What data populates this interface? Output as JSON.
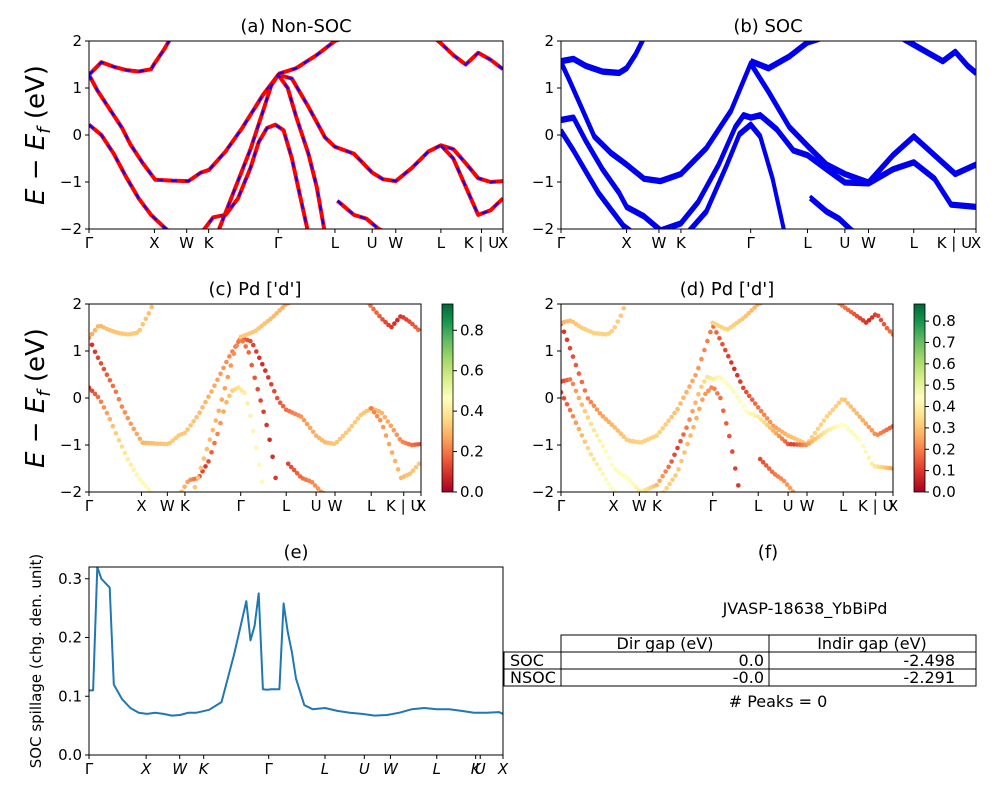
{
  "chart_data": [
    {
      "id": "a",
      "type": "line",
      "title": "(a) Non-SOC",
      "ylabel": "E − E_f (eV)",
      "ylim": [
        -2,
        2
      ],
      "yticks": [
        "2",
        "1",
        "0",
        "−1",
        "−2"
      ],
      "kpath_labels": [
        "Γ",
        "X",
        "W",
        "K",
        "Γ",
        "L",
        "U",
        "W",
        "L",
        "K | U",
        "X"
      ],
      "kpath_positions": [
        0,
        0.158,
        0.236,
        0.289,
        0.457,
        0.594,
        0.684,
        0.741,
        0.85,
        0.948,
        1.0
      ],
      "style": "red solid with blue dashed overlay",
      "series": [
        {
          "x": [
            0,
            0.02,
            0.05,
            0.08,
            0.1,
            0.13,
            0.16,
            0.2,
            0.24,
            0.27,
            0.29,
            0.33,
            0.37,
            0.42,
            0.457,
            0.49,
            0.53,
            0.57,
            0.594,
            0.64,
            0.684,
            0.71,
            0.741,
            0.78,
            0.82,
            0.85,
            0.88,
            0.91,
            0.94,
            0.97,
            1.0
          ],
          "y": [
            1.28,
            0.95,
            0.55,
            0.15,
            -0.2,
            -0.6,
            -0.95,
            -0.97,
            -0.98,
            -0.8,
            -0.74,
            -0.35,
            0.15,
            0.85,
            1.28,
            1.2,
            0.6,
            -0.05,
            -0.25,
            -0.4,
            -0.8,
            -0.94,
            -0.98,
            -0.7,
            -0.35,
            -0.22,
            -0.3,
            -0.6,
            -0.92,
            -1.0,
            -0.98
          ]
        },
        {
          "x": [
            0,
            0.03,
            0.06,
            0.09,
            0.12,
            0.15,
            0.18,
            0.2
          ],
          "y": [
            0.22,
            0.0,
            -0.4,
            -0.9,
            -1.35,
            -1.7,
            -1.95,
            -2.1
          ]
        },
        {
          "x": [
            0.27,
            0.3,
            0.33,
            0.36,
            0.39,
            0.41,
            0.43,
            0.45,
            0.47,
            0.49,
            0.51,
            0.53
          ],
          "y": [
            -2.1,
            -1.75,
            -1.7,
            -1.35,
            -0.7,
            -0.15,
            0.15,
            0.22,
            0.1,
            -0.5,
            -1.3,
            -2.1
          ]
        },
        {
          "x": [
            0.31,
            0.35,
            0.39,
            0.42,
            0.44,
            0.457,
            0.48,
            0.5,
            0.53,
            0.55,
            0.57
          ],
          "y": [
            -2.1,
            -1.2,
            -0.3,
            0.5,
            1.05,
            1.28,
            1.0,
            0.4,
            -0.4,
            -1.1,
            -2.1
          ]
        },
        {
          "x": [
            0,
            0.03,
            0.06,
            0.09,
            0.12,
            0.15,
            0.158,
            0.18,
            0.2
          ],
          "y": [
            1.28,
            1.55,
            1.45,
            1.38,
            1.35,
            1.4,
            1.52,
            1.8,
            2.1
          ]
        },
        {
          "x": [
            0.457,
            0.5,
            0.55,
            0.594,
            0.63,
            0.66
          ],
          "y": [
            1.3,
            1.42,
            1.7,
            2.0,
            2.1,
            2.1
          ]
        },
        {
          "x": [
            0.6,
            0.64,
            0.67,
            0.7,
            0.73
          ],
          "y": [
            -1.4,
            -1.7,
            -1.78,
            -2.0,
            -2.1
          ]
        },
        {
          "x": [
            0.83,
            0.85,
            0.88,
            0.91,
            0.94,
            0.97,
            1.0
          ],
          "y": [
            2.1,
            1.95,
            1.7,
            1.5,
            1.75,
            1.6,
            1.4
          ]
        },
        {
          "x": [
            0.85,
            0.88,
            0.91,
            0.94,
            0.97,
            1.0
          ],
          "y": [
            -0.22,
            -0.5,
            -1.1,
            -1.7,
            -1.6,
            -1.35
          ]
        }
      ]
    },
    {
      "id": "b",
      "type": "line",
      "title": "(b) SOC",
      "ylim": [
        -2,
        2
      ],
      "yticks": [
        "2",
        "1",
        "0",
        "−1",
        "−2"
      ],
      "kpath_labels": [
        "Γ",
        "X",
        "W",
        "K",
        "Γ",
        "L",
        "U",
        "W",
        "L",
        "K | U",
        "X"
      ],
      "kpath_positions": [
        0,
        0.158,
        0.236,
        0.289,
        0.457,
        0.594,
        0.684,
        0.741,
        0.85,
        0.948,
        1.0
      ],
      "color": "#0000ee",
      "series": [
        {
          "x": [
            0,
            0.02,
            0.05,
            0.08,
            0.12,
            0.158,
            0.2,
            0.24,
            0.289,
            0.35,
            0.41,
            0.457,
            0.5,
            0.55,
            0.594,
            0.64,
            0.684,
            0.741,
            0.8,
            0.85,
            0.9,
            0.95,
            1.0
          ],
          "y": [
            1.58,
            1.2,
            0.6,
            0.0,
            -0.35,
            -0.6,
            -0.9,
            -0.95,
            -0.8,
            -0.25,
            0.55,
            1.55,
            0.95,
            0.2,
            -0.2,
            -0.6,
            -0.8,
            -0.98,
            -0.4,
            0.0,
            -0.4,
            -0.8,
            -0.6
          ]
        },
        {
          "x": [
            0,
            0.03,
            0.06,
            0.1,
            0.14,
            0.158,
            0.2,
            0.24,
            0.289,
            0.33,
            0.38,
            0.42,
            0.44,
            0.457,
            0.48,
            0.52,
            0.56,
            0.594,
            0.64,
            0.684,
            0.741,
            0.8,
            0.85,
            0.9,
            0.94,
            1.0
          ],
          "y": [
            0.35,
            0.4,
            -0.1,
            -0.7,
            -1.2,
            -1.5,
            -1.7,
            -2.0,
            -1.85,
            -1.4,
            -0.6,
            0.2,
            0.45,
            0.4,
            0.45,
            0.15,
            -0.3,
            -0.4,
            -0.7,
            -0.98,
            -1.0,
            -0.7,
            -0.55,
            -0.9,
            -1.45,
            -1.5
          ]
        },
        {
          "x": [
            0,
            0.03,
            0.06,
            0.09,
            0.12,
            0.15,
            0.18
          ],
          "y": [
            0.12,
            -0.3,
            -0.75,
            -1.2,
            -1.55,
            -1.9,
            -2.1
          ]
        },
        {
          "x": [
            0.3,
            0.35,
            0.4,
            0.43,
            0.457,
            0.48,
            0.51,
            0.54
          ],
          "y": [
            -2.1,
            -1.6,
            -0.6,
            0.05,
            0.25,
            0.0,
            -0.9,
            -2.1
          ]
        },
        {
          "x": [
            0,
            0.03,
            0.06,
            0.1,
            0.14,
            0.158,
            0.18,
            0.2
          ],
          "y": [
            1.6,
            1.65,
            1.5,
            1.38,
            1.35,
            1.45,
            1.75,
            2.1
          ]
        },
        {
          "x": [
            0.457,
            0.5,
            0.55,
            0.594,
            0.63,
            0.66
          ],
          "y": [
            1.6,
            1.45,
            1.7,
            2.0,
            2.1,
            2.1
          ]
        },
        {
          "x": [
            0.6,
            0.64,
            0.67,
            0.7,
            0.72
          ],
          "y": [
            -1.3,
            -1.6,
            -1.75,
            -2.0,
            -2.1
          ]
        },
        {
          "x": [
            0.82,
            0.85,
            0.88,
            0.92,
            0.95,
            0.98,
            1.0
          ],
          "y": [
            2.1,
            1.95,
            1.8,
            1.6,
            1.8,
            1.5,
            1.35
          ]
        }
      ]
    },
    {
      "id": "c",
      "type": "scatter",
      "title": "(c)  Pd ['d']",
      "ylabel": "E − E_f (eV)",
      "ylim": [
        -2,
        2
      ],
      "yticks": [
        "2",
        "1",
        "0",
        "−1",
        "−2"
      ],
      "kpath_labels": [
        "Γ",
        "X",
        "W",
        "K",
        "Γ",
        "L",
        "U",
        "W",
        "L",
        "K | U",
        "X"
      ],
      "kpath_positions": [
        0,
        0.158,
        0.236,
        0.289,
        0.457,
        0.594,
        0.684,
        0.741,
        0.85,
        0.948,
        1.0
      ],
      "colorbar": {
        "ticks": [
          "0.0",
          "0.2",
          "0.4",
          "0.6",
          "0.8"
        ],
        "range": [
          0,
          0.93
        ],
        "cmap": "RdYlGn"
      }
    },
    {
      "id": "d",
      "type": "scatter",
      "title": "(d) Pd ['d']",
      "ylim": [
        -2,
        2
      ],
      "yticks": [
        "2",
        "1",
        "0",
        "−1",
        "−2"
      ],
      "kpath_labels": [
        "Γ",
        "X",
        "W",
        "K",
        "Γ",
        "L",
        "U",
        "W",
        "L",
        "K | U",
        "X"
      ],
      "kpath_positions": [
        0,
        0.158,
        0.236,
        0.289,
        0.457,
        0.594,
        0.684,
        0.741,
        0.85,
        0.948,
        1.0
      ],
      "colorbar": {
        "ticks": [
          "0.0",
          "0.1",
          "0.2",
          "0.3",
          "0.4",
          "0.5",
          "0.6",
          "0.7",
          "0.8"
        ],
        "range": [
          0,
          0.88
        ],
        "cmap": "RdYlGn"
      }
    },
    {
      "id": "e",
      "type": "line",
      "title": "(e)",
      "ylabel": "SOC spillage (chg. den. unit)",
      "ylim": [
        0.0,
        0.32
      ],
      "yticks": [
        "0.3",
        "0.2",
        "0.1",
        "0.0"
      ],
      "ytick_values": [
        0.3,
        0.2,
        0.1,
        0.0
      ],
      "kpath_labels": [
        "Γ",
        "X",
        "W",
        "K",
        "Γ",
        "L",
        "U",
        "W",
        "L",
        "K",
        "U",
        "X"
      ],
      "kpath_positions": [
        0,
        0.138,
        0.219,
        0.277,
        0.434,
        0.57,
        0.665,
        0.728,
        0.84,
        0.934,
        0.945,
        1.0
      ],
      "color": "#1f77b4",
      "x": [
        0,
        0.01,
        0.02,
        0.03,
        0.05,
        0.06,
        0.08,
        0.1,
        0.12,
        0.14,
        0.16,
        0.18,
        0.2,
        0.22,
        0.24,
        0.26,
        0.29,
        0.32,
        0.35,
        0.36,
        0.38,
        0.39,
        0.4,
        0.41,
        0.42,
        0.43,
        0.44,
        0.46,
        0.47,
        0.48,
        0.49,
        0.5,
        0.52,
        0.54,
        0.57,
        0.6,
        0.63,
        0.66,
        0.69,
        0.72,
        0.75,
        0.78,
        0.81,
        0.84,
        0.87,
        0.9,
        0.93,
        0.96,
        0.99,
        1.0
      ],
      "values": [
        0.11,
        0.11,
        0.32,
        0.3,
        0.285,
        0.12,
        0.095,
        0.08,
        0.072,
        0.07,
        0.072,
        0.07,
        0.067,
        0.068,
        0.072,
        0.072,
        0.077,
        0.09,
        0.17,
        0.2,
        0.262,
        0.195,
        0.22,
        0.275,
        0.112,
        0.111,
        0.112,
        0.112,
        0.258,
        0.21,
        0.175,
        0.13,
        0.085,
        0.078,
        0.08,
        0.075,
        0.072,
        0.07,
        0.067,
        0.068,
        0.072,
        0.078,
        0.08,
        0.078,
        0.078,
        0.075,
        0.072,
        0.072,
        0.073,
        0.07
      ]
    }
  ],
  "panel_f": {
    "title": "(f)",
    "subtitle": "JVASP-18638_YbBiPd",
    "table": {
      "columns": [
        "",
        "Dir gap (eV)",
        "Indir gap (eV)"
      ],
      "rows": [
        {
          "label": "SOC",
          "dir": "0.0",
          "indir": "-2.498"
        },
        {
          "label": "NSOC",
          "dir": "-0.0",
          "indir": "-2.291"
        }
      ]
    },
    "peaks": "# Peaks = 0"
  }
}
